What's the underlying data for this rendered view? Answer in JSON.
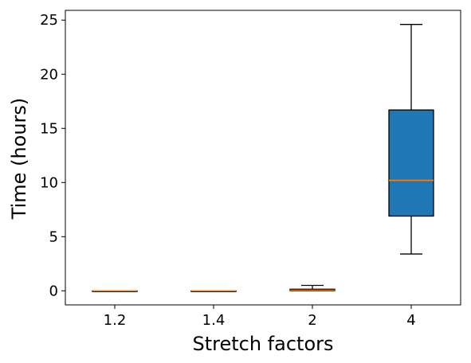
{
  "chart_data": {
    "type": "box",
    "title": "",
    "xlabel": "Stretch factors",
    "ylabel": "Time (hours)",
    "ylim": [
      -1.3,
      25.9
    ],
    "yticks": [
      0,
      5,
      10,
      15,
      20,
      25
    ],
    "categories": [
      "1.2",
      "1.4",
      "2",
      "4"
    ],
    "boxes": [
      {
        "category": "1.2",
        "whisker_low": 0.0,
        "q1": 0.0,
        "median": 0.0,
        "q3": 0.0,
        "whisker_high": 0.0
      },
      {
        "category": "1.4",
        "whisker_low": 0.0,
        "q1": 0.0,
        "median": 0.0,
        "q3": 0.0,
        "whisker_high": 0.0
      },
      {
        "category": "2",
        "whisker_low": 0.0,
        "q1": 0.0,
        "median": 0.05,
        "q3": 0.15,
        "whisker_high": 0.5
      },
      {
        "category": "4",
        "whisker_low": 3.4,
        "q1": 6.9,
        "median": 10.2,
        "q3": 16.7,
        "whisker_high": 24.6
      }
    ],
    "grid": false,
    "legend": "none",
    "colors": {
      "box_fill": "#1f77b4",
      "median": "#ff7f0e",
      "edge": "#000000"
    }
  }
}
